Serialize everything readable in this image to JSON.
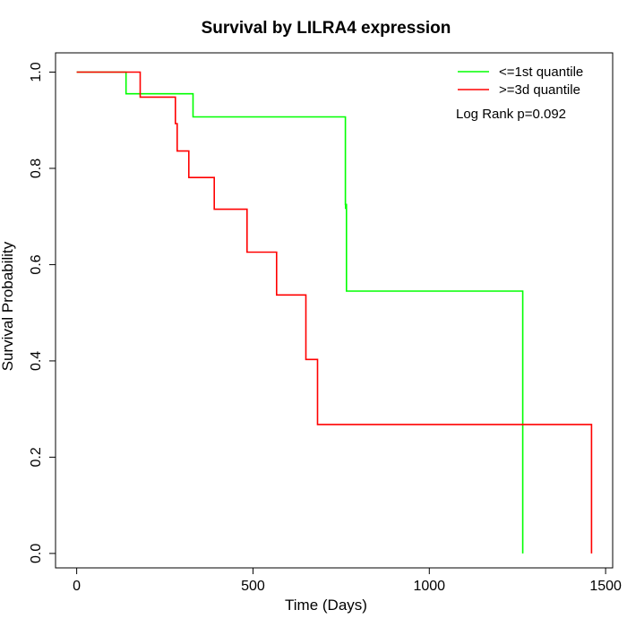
{
  "chart_data": {
    "type": "line",
    "step": true,
    "title": "Survival by LILRA4 expression",
    "xlabel": "Time (Days)",
    "ylabel": "Survival Probability",
    "xlim": [
      -60,
      1520
    ],
    "ylim": [
      -0.03,
      1.04
    ],
    "x_ticks": [
      0,
      500,
      1000,
      1500
    ],
    "y_ticks": [
      0.0,
      0.2,
      0.4,
      0.6,
      0.8,
      1.0
    ],
    "x_tick_labels": [
      "0",
      "500",
      "1000",
      "1500"
    ],
    "y_tick_labels": [
      "0.0",
      "0.2",
      "0.4",
      "0.6",
      "0.8",
      "1.0"
    ],
    "grid": false,
    "legend_position": "top-right",
    "annotation": "Log Rank p=0.092",
    "series": [
      {
        "name": "<=1st quantile",
        "color": "#00ff00",
        "points": [
          [
            0,
            1.0
          ],
          [
            140,
            1.0
          ],
          [
            140,
            0.955
          ],
          [
            330,
            0.955
          ],
          [
            330,
            0.907
          ],
          [
            762,
            0.907
          ],
          [
            762,
            0.725
          ],
          [
            765,
            0.725
          ],
          [
            765,
            0.545
          ],
          [
            1265,
            0.545
          ],
          [
            1265,
            0.0
          ]
        ],
        "censor_ticks": [
          [
            762,
            0.725
          ],
          [
            765,
            0.58
          ]
        ]
      },
      {
        "name": ">=3d quantile",
        "color": "#ff0000",
        "points": [
          [
            0,
            1.0
          ],
          [
            180,
            1.0
          ],
          [
            180,
            0.948
          ],
          [
            280,
            0.948
          ],
          [
            280,
            0.893
          ],
          [
            285,
            0.893
          ],
          [
            285,
            0.836
          ],
          [
            318,
            0.836
          ],
          [
            318,
            0.781
          ],
          [
            390,
            0.781
          ],
          [
            390,
            0.715
          ],
          [
            483,
            0.715
          ],
          [
            483,
            0.626
          ],
          [
            567,
            0.626
          ],
          [
            567,
            0.537
          ],
          [
            650,
            0.537
          ],
          [
            650,
            0.403
          ],
          [
            683,
            0.403
          ],
          [
            683,
            0.268
          ],
          [
            1460,
            0.268
          ],
          [
            1460,
            0.0
          ]
        ],
        "censor_ticks": []
      }
    ]
  }
}
